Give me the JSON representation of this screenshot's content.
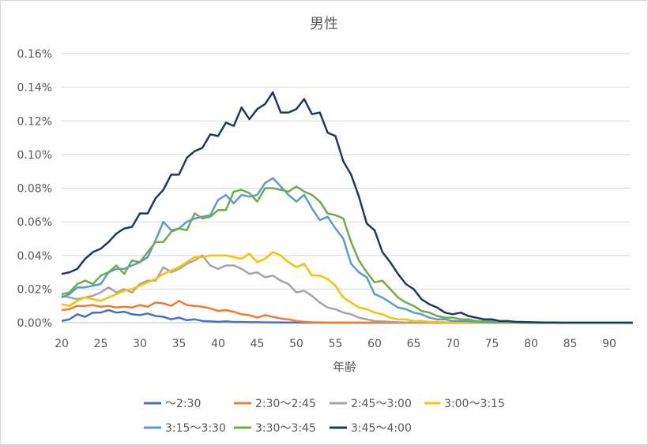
{
  "chart_data": {
    "type": "line",
    "title": "男性",
    "xlabel": "年齢",
    "ylabel": "",
    "xlim": [
      20,
      93
    ],
    "ylim": [
      0,
      0.0016
    ],
    "x_ticks": [
      "20",
      "25",
      "30",
      "35",
      "40",
      "45",
      "50",
      "55",
      "60",
      "65",
      "70",
      "75",
      "80",
      "85",
      "90"
    ],
    "y_ticks": [
      "0.00%",
      "0.02%",
      "0.04%",
      "0.06%",
      "0.08%",
      "0.10%",
      "0.12%",
      "0.14%",
      "0.16%"
    ],
    "grid": "horizontal",
    "legend_position": "bottom",
    "x": [
      20,
      21,
      22,
      23,
      24,
      25,
      26,
      27,
      28,
      29,
      30,
      31,
      32,
      33,
      34,
      35,
      36,
      37,
      38,
      39,
      40,
      41,
      42,
      43,
      44,
      45,
      46,
      47,
      48,
      49,
      50,
      51,
      52,
      53,
      54,
      55,
      56,
      57,
      58,
      59,
      60,
      61,
      62,
      63,
      64,
      65,
      66,
      67,
      68,
      69,
      70,
      71,
      72,
      73,
      74,
      75,
      76,
      77,
      78,
      79,
      80,
      81,
      82,
      83,
      84,
      85,
      86,
      87,
      88,
      89,
      90,
      91,
      92,
      93
    ],
    "series": [
      {
        "name": "〜2:30",
        "color": "#4472c4",
        "values": [
          1e-05,
          2e-05,
          5e-05,
          3.5e-05,
          6e-05,
          6e-05,
          7.5e-05,
          6e-05,
          6.5e-05,
          5e-05,
          4.5e-05,
          5.5e-05,
          4e-05,
          3.5e-05,
          2e-05,
          3e-05,
          1.5e-05,
          2e-05,
          1e-05,
          8e-06,
          5e-06,
          8e-06,
          4e-06,
          4e-06,
          3e-06,
          3e-06,
          2e-06,
          2e-06,
          1e-06,
          1e-06,
          1e-06,
          0,
          0,
          0,
          0,
          0,
          0,
          0,
          0,
          0,
          0,
          0,
          0,
          0,
          0,
          0,
          0,
          0,
          0,
          0,
          0,
          0,
          0,
          0,
          0,
          0,
          0,
          0,
          0,
          0,
          0,
          0,
          0,
          0,
          0,
          0,
          0,
          0,
          0,
          0,
          0,
          0,
          0,
          0
        ]
      },
      {
        "name": "2:30〜2:45",
        "color": "#ed7d31",
        "values": [
          7.5e-05,
          8e-05,
          0.0001,
          0.0001,
          0.000105,
          9.5e-05,
          0.0001,
          9e-05,
          9.5e-05,
          9e-05,
          0.000105,
          9.5e-05,
          0.00012,
          0.000115,
          0.0001,
          0.00013,
          0.000105,
          0.0001,
          9.5e-05,
          8.5e-05,
          7e-05,
          7.5e-05,
          6.5e-05,
          5e-05,
          4.5e-05,
          3e-05,
          4.5e-05,
          3.5e-05,
          2.5e-05,
          2e-05,
          1e-05,
          5e-06,
          2e-06,
          2e-06,
          1e-06,
          1e-06,
          1e-06,
          1e-06,
          0,
          0,
          0,
          0,
          0,
          0,
          0,
          0,
          0,
          0,
          0,
          0,
          0,
          0,
          0,
          0,
          0,
          0,
          0,
          0,
          0,
          0,
          0,
          0,
          0,
          0,
          0,
          0,
          0,
          0,
          0,
          0,
          0,
          0,
          0,
          0
        ]
      },
      {
        "name": "2:45〜3:00",
        "color": "#a5a5a5",
        "values": [
          0.00016,
          0.00015,
          0.00014,
          0.00015,
          0.00016,
          0.00018,
          0.00021,
          0.00018,
          0.0002,
          0.00018,
          0.00023,
          0.00025,
          0.00025,
          0.00033,
          0.0003,
          0.00032,
          0.00035,
          0.00037,
          0.0004,
          0.00034,
          0.00032,
          0.00034,
          0.00034,
          0.00032,
          0.00029,
          0.0003,
          0.00027,
          0.00028,
          0.00025,
          0.00023,
          0.00018,
          0.00019,
          0.00016,
          0.00012,
          9e-05,
          8e-05,
          6e-05,
          5e-05,
          3e-05,
          2e-05,
          1e-05,
          8e-06,
          5e-06,
          3e-06,
          2e-06,
          2e-06,
          1e-06,
          1e-06,
          1e-06,
          0,
          0,
          0,
          0,
          0,
          0,
          0,
          0,
          0,
          0,
          0,
          0,
          0,
          0,
          0,
          0,
          0,
          0,
          0,
          0,
          0,
          0,
          0,
          0,
          0
        ]
      },
      {
        "name": "3:00〜3:15",
        "color": "#ffc000",
        "values": [
          0.00011,
          0.0001,
          0.00013,
          0.00015,
          0.00014,
          0.00013,
          0.00015,
          0.00017,
          0.00019,
          0.0002,
          0.00022,
          0.00024,
          0.00026,
          0.00029,
          0.00031,
          0.00033,
          0.00036,
          0.00039,
          0.00039,
          0.0004,
          0.0004,
          0.0004,
          0.00039,
          0.00038,
          0.00041,
          0.00036,
          0.00038,
          0.00042,
          0.0004,
          0.00036,
          0.00033,
          0.00035,
          0.00028,
          0.00028,
          0.00026,
          0.00022,
          0.00015,
          0.00012,
          9e-05,
          8e-05,
          6e-05,
          5e-05,
          3e-05,
          2e-05,
          2e-05,
          1e-05,
          1e-05,
          5e-06,
          5e-06,
          3e-06,
          2e-06,
          2e-06,
          1e-06,
          1e-06,
          0,
          0,
          0,
          0,
          0,
          0,
          0,
          0,
          0,
          0,
          0,
          0,
          0,
          0,
          0,
          0,
          0,
          0,
          0,
          0
        ]
      },
      {
        "name": "3:15〜3:30",
        "color": "#5b9bd5",
        "values": [
          0.00015,
          0.00017,
          0.00021,
          0.00021,
          0.00022,
          0.00023,
          0.0003,
          0.00032,
          0.00032,
          0.00034,
          0.00036,
          0.00039,
          0.00049,
          0.0006,
          0.00055,
          0.00056,
          0.0006,
          0.00062,
          0.00063,
          0.00064,
          0.00073,
          0.00076,
          0.00071,
          0.00076,
          0.00075,
          0.00076,
          0.00083,
          0.00086,
          0.00081,
          0.00076,
          0.00072,
          0.00076,
          0.00068,
          0.00061,
          0.00063,
          0.00056,
          0.0005,
          0.00035,
          0.0003,
          0.00027,
          0.00017,
          0.00015,
          0.00012,
          9e-05,
          8e-05,
          6e-05,
          5e-05,
          3e-05,
          2e-05,
          2e-05,
          1e-05,
          1e-05,
          8e-06,
          5e-06,
          3e-06,
          2e-06,
          2e-06,
          1e-06,
          1e-06,
          0,
          0,
          0,
          0,
          0,
          0,
          0,
          0,
          0,
          0,
          0,
          0,
          0,
          0,
          0
        ]
      },
      {
        "name": "3:30〜3:45",
        "color": "#70ad47",
        "values": [
          0.00017,
          0.00018,
          0.00023,
          0.00025,
          0.00023,
          0.00028,
          0.0003,
          0.00034,
          0.00029,
          0.00037,
          0.00036,
          0.00042,
          0.00048,
          0.00048,
          0.00054,
          0.00056,
          0.00055,
          0.00065,
          0.00062,
          0.00063,
          0.00067,
          0.00067,
          0.00078,
          0.00079,
          0.00077,
          0.00072,
          0.0008,
          0.0008,
          0.00079,
          0.00078,
          0.00081,
          0.00078,
          0.00076,
          0.00072,
          0.00065,
          0.00064,
          0.00062,
          0.00048,
          0.00037,
          0.0003,
          0.00024,
          0.00025,
          0.0002,
          0.00015,
          0.00012,
          0.0001,
          7e-05,
          6e-05,
          4e-05,
          3e-05,
          3e-05,
          2e-05,
          2e-05,
          1e-05,
          1e-05,
          8e-06,
          5e-06,
          3e-06,
          2e-06,
          1e-06,
          1e-06,
          0,
          0,
          0,
          0,
          0,
          0,
          0,
          0,
          0,
          0,
          0,
          0,
          0
        ]
      },
      {
        "name": "3:45〜4:00",
        "color": "#203864",
        "values": [
          0.00029,
          0.0003,
          0.00032,
          0.00038,
          0.00042,
          0.00044,
          0.00048,
          0.00053,
          0.00056,
          0.00057,
          0.00065,
          0.00065,
          0.00074,
          0.00079,
          0.00088,
          0.00088,
          0.00098,
          0.00102,
          0.00104,
          0.00112,
          0.00111,
          0.00119,
          0.00117,
          0.00128,
          0.00121,
          0.00127,
          0.0013,
          0.00137,
          0.00125,
          0.00125,
          0.00127,
          0.00133,
          0.00124,
          0.00125,
          0.00113,
          0.00111,
          0.00096,
          0.00088,
          0.00075,
          0.00059,
          0.00055,
          0.00042,
          0.00036,
          0.00029,
          0.00023,
          0.0002,
          0.00014,
          0.00011,
          9e-05,
          6e-05,
          5e-05,
          6e-05,
          4e-05,
          3e-05,
          2e-05,
          2e-05,
          1e-05,
          1e-05,
          5e-06,
          4e-06,
          3e-06,
          2e-06,
          1e-06,
          1e-06,
          0,
          0,
          0,
          0,
          0,
          0,
          0,
          0,
          0,
          0
        ]
      }
    ]
  }
}
